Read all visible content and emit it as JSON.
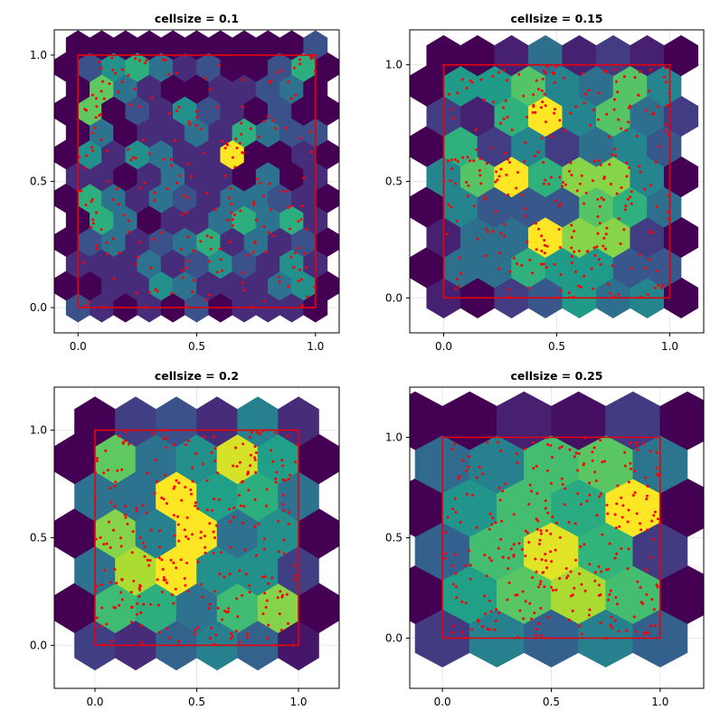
{
  "chart_data": [
    {
      "type": "heatmap",
      "subtype": "hexbin",
      "title": "cellsize = 0.1",
      "cellsize": 0.1,
      "xlim": [
        -0.1,
        1.1
      ],
      "ylim": [
        -0.1,
        1.1
      ],
      "xticks": [
        "0.0",
        "0.5",
        "1.0"
      ],
      "yticks": [
        "0.0",
        "0.5",
        "1.0"
      ],
      "grid": true,
      "colormap": "viridis",
      "overlay": {
        "shape": "unit square",
        "corners": [
          [
            0,
            0
          ],
          [
            1,
            0
          ],
          [
            1,
            1
          ],
          [
            0,
            1
          ]
        ],
        "color": "#e8000b"
      },
      "points_color": "#ff0000"
    },
    {
      "type": "heatmap",
      "subtype": "hexbin",
      "title": "cellsize = 0.15",
      "cellsize": 0.15,
      "xlim": [
        -0.15,
        1.15
      ],
      "ylim": [
        -0.15,
        1.15
      ],
      "xticks": [
        "0.0",
        "0.5",
        "1.0"
      ],
      "yticks": [
        "0.0",
        "0.5",
        "1.0"
      ],
      "grid": true,
      "colormap": "viridis",
      "overlay": {
        "shape": "unit square",
        "corners": [
          [
            0,
            0
          ],
          [
            1,
            0
          ],
          [
            1,
            1
          ],
          [
            0,
            1
          ]
        ],
        "color": "#e8000b"
      },
      "points_color": "#ff0000"
    },
    {
      "type": "heatmap",
      "subtype": "hexbin",
      "title": "cellsize = 0.2",
      "cellsize": 0.2,
      "xlim": [
        -0.2,
        1.2
      ],
      "ylim": [
        -0.2,
        1.2
      ],
      "xticks": [
        "0.0",
        "0.5",
        "1.0"
      ],
      "yticks": [
        "0.0",
        "0.5",
        "1.0"
      ],
      "grid": true,
      "colormap": "viridis",
      "overlay": {
        "shape": "unit square",
        "corners": [
          [
            0,
            0
          ],
          [
            1,
            0
          ],
          [
            1,
            1
          ],
          [
            0,
            1
          ]
        ],
        "color": "#e8000b"
      },
      "points_color": "#ff0000"
    },
    {
      "type": "heatmap",
      "subtype": "hexbin",
      "title": "cellsize = 0.25",
      "cellsize": 0.25,
      "xlim": [
        -0.15,
        1.2
      ],
      "ylim": [
        -0.25,
        1.25
      ],
      "xticks": [
        "0.0",
        "0.5",
        "1.0"
      ],
      "yticks": [
        "0.0",
        "0.5",
        "1.0"
      ],
      "grid": true,
      "colormap": "viridis",
      "overlay": {
        "shape": "unit square",
        "corners": [
          [
            0,
            0
          ],
          [
            1,
            0
          ],
          [
            1,
            1
          ],
          [
            0,
            1
          ]
        ],
        "color": "#e8000b"
      },
      "points_color": "#ff0000"
    }
  ]
}
